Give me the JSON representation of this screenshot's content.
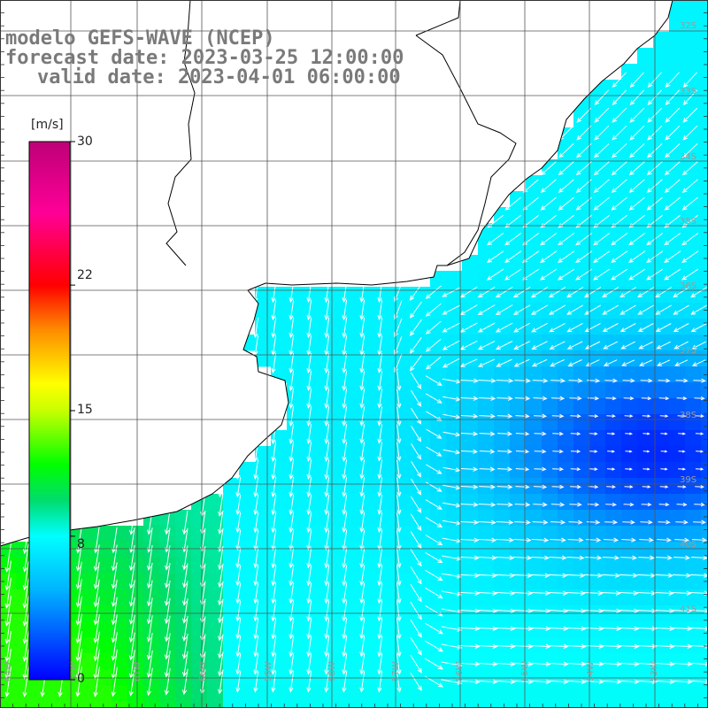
{
  "title": {
    "model": "modelo GEFS-WAVE (NCEP)",
    "forecast": "forecast date: 2023-03-25 12:00:00",
    "valid": "valid date: 2023-04-01 06:00:00"
  },
  "colorbar": {
    "unit": "[m/s]",
    "min": 0,
    "max": 30,
    "ticks": [
      "30",
      "22",
      "15",
      "8",
      "0"
    ],
    "tick_values": [
      30,
      22,
      15,
      8,
      0
    ],
    "colors": [
      "#0000ff",
      "#00b4ff",
      "#00ffff",
      "#00dc6e",
      "#00ff00",
      "#c8ff00",
      "#ffff00",
      "#ff8c00",
      "#ff0000",
      "#ff0096",
      "#be0078"
    ]
  },
  "map": {
    "lat_labels": [
      "32S",
      "33S",
      "34S",
      "35S",
      "36S",
      "37S",
      "38S",
      "39S",
      "40S",
      "41S"
    ],
    "lon_labels": [
      "64W",
      "62W",
      "61W",
      "60W",
      "59W",
      "58W",
      "57W",
      "56W",
      "55W",
      "54W",
      "53W"
    ],
    "land_color": "#ffffff",
    "coast_color": "#000000",
    "grid_color": "#555555",
    "arrow_color": "#ffffff"
  }
}
